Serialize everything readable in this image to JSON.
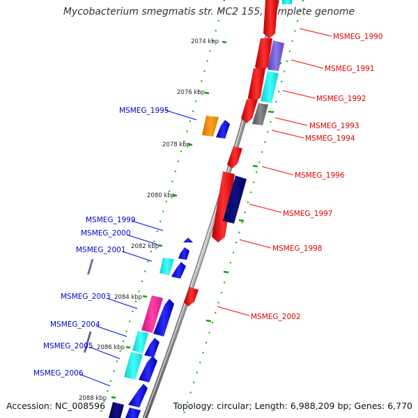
{
  "title": "Mycobacterium smegmatis str. MC2 155, complete genome",
  "accession_text": "Accession: NC_008596",
  "topology_text": "Topology: circular; Length: 6,988,209 bp; Genes: 6,770",
  "colors": {
    "forward": "#ff0000",
    "reverse": "#0000ff",
    "backbone": "#8c8c8c",
    "tick": "#00aa00",
    "forward_label": "#dd0000",
    "reverse_label": "#0000cc"
  },
  "kbp_labels": [
    "2074 kbp",
    "2076 kbp",
    "2078 kbp",
    "2080 kbp",
    "2082 kbp",
    "2084 kbp",
    "2086 kbp",
    "2088 kbp"
  ],
  "gene_labels_forward": [
    "MSMEG_1990",
    "MSMEG_1991",
    "MSMEG_1992",
    "MSMEG_1993",
    "MSMEG_1994",
    "MSMEG_1996",
    "MSMEG_1997",
    "MSMEG_1998",
    "MSMEG_2002"
  ],
  "gene_labels_reverse": [
    "MSMEG_1995",
    "MSMEG_1999",
    "MSMEG_2000",
    "MSMEG_2001",
    "MSMEG_2003",
    "MSMEG_2004",
    "MSMEG_2005",
    "MSMEG_2006"
  ]
}
